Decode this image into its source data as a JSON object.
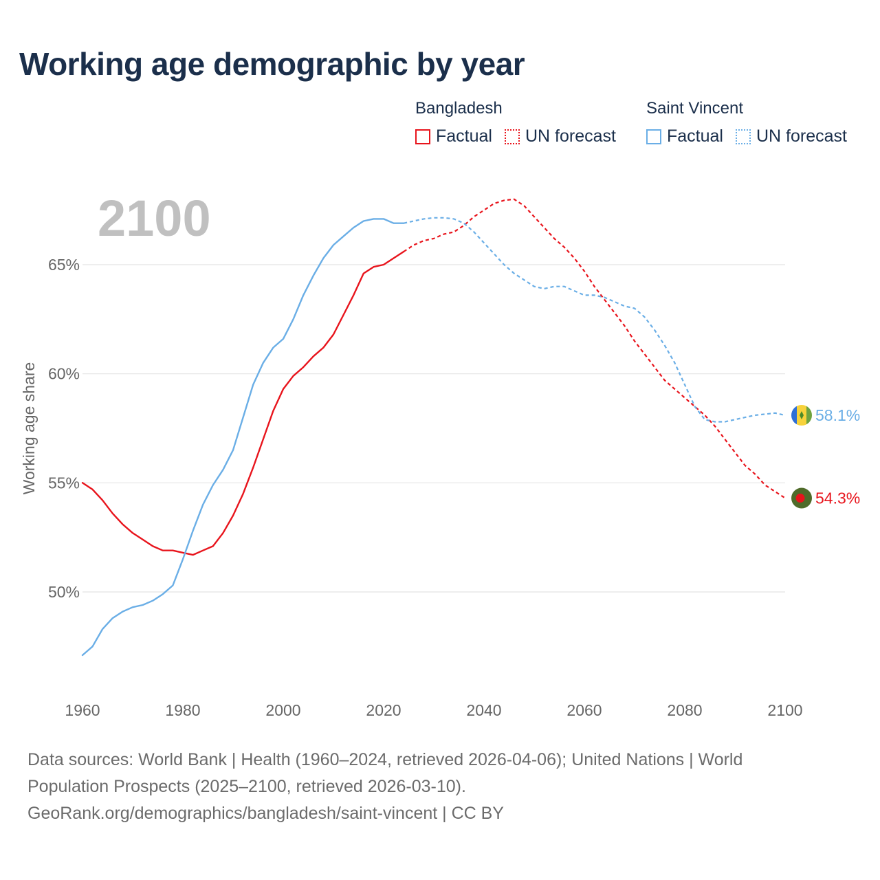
{
  "title": "Working age demographic by year",
  "year_label": "2100",
  "legend": {
    "groups": [
      {
        "name": "Bangladesh",
        "color": "#e8141c",
        "factual": "Factual",
        "forecast": "UN forecast"
      },
      {
        "name": "Saint Vincent",
        "color": "#6aaee6",
        "factual": "Factual",
        "forecast": "UN forecast"
      }
    ]
  },
  "chart_data": {
    "type": "line",
    "xlabel": "",
    "ylabel": "Working age share",
    "xlim": [
      1960,
      2100
    ],
    "ylim": [
      46.5,
      68.5
    ],
    "xticks": [
      1960,
      1980,
      2000,
      2020,
      2040,
      2060,
      2080,
      2100
    ],
    "yticks": [
      50,
      55,
      60,
      65
    ],
    "ytick_labels": [
      "50%",
      "55%",
      "60%",
      "65%"
    ],
    "factual_until": 2024,
    "series": [
      {
        "name": "Bangladesh",
        "color": "#e8141c",
        "end_label": "54.3%",
        "flag": "bangladesh",
        "points": [
          [
            1960,
            55.0
          ],
          [
            1962,
            54.7
          ],
          [
            1964,
            54.2
          ],
          [
            1966,
            53.6
          ],
          [
            1968,
            53.1
          ],
          [
            1970,
            52.7
          ],
          [
            1972,
            52.4
          ],
          [
            1974,
            52.1
          ],
          [
            1976,
            51.9
          ],
          [
            1978,
            51.9
          ],
          [
            1980,
            51.8
          ],
          [
            1982,
            51.7
          ],
          [
            1984,
            51.9
          ],
          [
            1986,
            52.1
          ],
          [
            1988,
            52.7
          ],
          [
            1990,
            53.5
          ],
          [
            1992,
            54.5
          ],
          [
            1994,
            55.7
          ],
          [
            1996,
            57.0
          ],
          [
            1998,
            58.3
          ],
          [
            2000,
            59.3
          ],
          [
            2002,
            59.9
          ],
          [
            2004,
            60.3
          ],
          [
            2006,
            60.8
          ],
          [
            2008,
            61.2
          ],
          [
            2010,
            61.8
          ],
          [
            2012,
            62.7
          ],
          [
            2014,
            63.6
          ],
          [
            2016,
            64.6
          ],
          [
            2018,
            64.9
          ],
          [
            2020,
            65.0
          ],
          [
            2022,
            65.3
          ],
          [
            2024,
            65.6
          ],
          [
            2026,
            65.9
          ],
          [
            2028,
            66.1
          ],
          [
            2030,
            66.2
          ],
          [
            2032,
            66.4
          ],
          [
            2034,
            66.5
          ],
          [
            2036,
            66.8
          ],
          [
            2038,
            67.2
          ],
          [
            2040,
            67.5
          ],
          [
            2042,
            67.8
          ],
          [
            2044,
            67.95
          ],
          [
            2046,
            68.0
          ],
          [
            2048,
            67.7
          ],
          [
            2050,
            67.2
          ],
          [
            2052,
            66.7
          ],
          [
            2054,
            66.2
          ],
          [
            2056,
            65.8
          ],
          [
            2058,
            65.3
          ],
          [
            2060,
            64.7
          ],
          [
            2062,
            64.0
          ],
          [
            2064,
            63.4
          ],
          [
            2066,
            62.8
          ],
          [
            2068,
            62.2
          ],
          [
            2070,
            61.5
          ],
          [
            2072,
            60.9
          ],
          [
            2074,
            60.3
          ],
          [
            2076,
            59.7
          ],
          [
            2078,
            59.3
          ],
          [
            2080,
            58.9
          ],
          [
            2082,
            58.5
          ],
          [
            2084,
            58.1
          ],
          [
            2086,
            57.6
          ],
          [
            2088,
            57.0
          ],
          [
            2090,
            56.4
          ],
          [
            2092,
            55.8
          ],
          [
            2094,
            55.4
          ],
          [
            2096,
            54.9
          ],
          [
            2098,
            54.6
          ],
          [
            2100,
            54.3
          ]
        ]
      },
      {
        "name": "Saint Vincent",
        "color": "#6aaee6",
        "end_label": "58.1%",
        "flag": "saint-vincent",
        "points": [
          [
            1960,
            47.1
          ],
          [
            1962,
            47.5
          ],
          [
            1964,
            48.3
          ],
          [
            1966,
            48.8
          ],
          [
            1968,
            49.1
          ],
          [
            1970,
            49.3
          ],
          [
            1972,
            49.4
          ],
          [
            1974,
            49.6
          ],
          [
            1976,
            49.9
          ],
          [
            1978,
            50.3
          ],
          [
            1980,
            51.5
          ],
          [
            1982,
            52.8
          ],
          [
            1984,
            54.0
          ],
          [
            1986,
            54.9
          ],
          [
            1988,
            55.6
          ],
          [
            1990,
            56.5
          ],
          [
            1992,
            58.0
          ],
          [
            1994,
            59.5
          ],
          [
            1996,
            60.5
          ],
          [
            1998,
            61.2
          ],
          [
            2000,
            61.6
          ],
          [
            2002,
            62.5
          ],
          [
            2004,
            63.6
          ],
          [
            2006,
            64.5
          ],
          [
            2008,
            65.3
          ],
          [
            2010,
            65.9
          ],
          [
            2012,
            66.3
          ],
          [
            2014,
            66.7
          ],
          [
            2016,
            67.0
          ],
          [
            2018,
            67.1
          ],
          [
            2020,
            67.1
          ],
          [
            2022,
            66.9
          ],
          [
            2024,
            66.9
          ],
          [
            2026,
            67.0
          ],
          [
            2028,
            67.1
          ],
          [
            2030,
            67.15
          ],
          [
            2032,
            67.15
          ],
          [
            2034,
            67.1
          ],
          [
            2036,
            66.9
          ],
          [
            2038,
            66.5
          ],
          [
            2040,
            66.0
          ],
          [
            2042,
            65.5
          ],
          [
            2044,
            65.0
          ],
          [
            2046,
            64.6
          ],
          [
            2048,
            64.3
          ],
          [
            2050,
            64.0
          ],
          [
            2052,
            63.9
          ],
          [
            2054,
            64.0
          ],
          [
            2056,
            64.0
          ],
          [
            2058,
            63.8
          ],
          [
            2060,
            63.6
          ],
          [
            2062,
            63.6
          ],
          [
            2064,
            63.5
          ],
          [
            2066,
            63.3
          ],
          [
            2068,
            63.1
          ],
          [
            2070,
            63.0
          ],
          [
            2072,
            62.6
          ],
          [
            2074,
            62.0
          ],
          [
            2076,
            61.3
          ],
          [
            2078,
            60.5
          ],
          [
            2080,
            59.5
          ],
          [
            2082,
            58.5
          ],
          [
            2084,
            57.9
          ],
          [
            2086,
            57.8
          ],
          [
            2088,
            57.8
          ],
          [
            2090,
            57.9
          ],
          [
            2092,
            58.0
          ],
          [
            2094,
            58.1
          ],
          [
            2096,
            58.15
          ],
          [
            2098,
            58.2
          ],
          [
            2100,
            58.1
          ]
        ]
      }
    ]
  },
  "footer": {
    "line1": "Data sources: World Bank | Health (1960–2024, retrieved 2026-04-06); United Nations | World",
    "line2": "Population Prospects (2025–2100, retrieved 2026-03-10).",
    "line3": "GeoRank.org/demographics/bangladesh/saint-vincent | CC BY"
  }
}
